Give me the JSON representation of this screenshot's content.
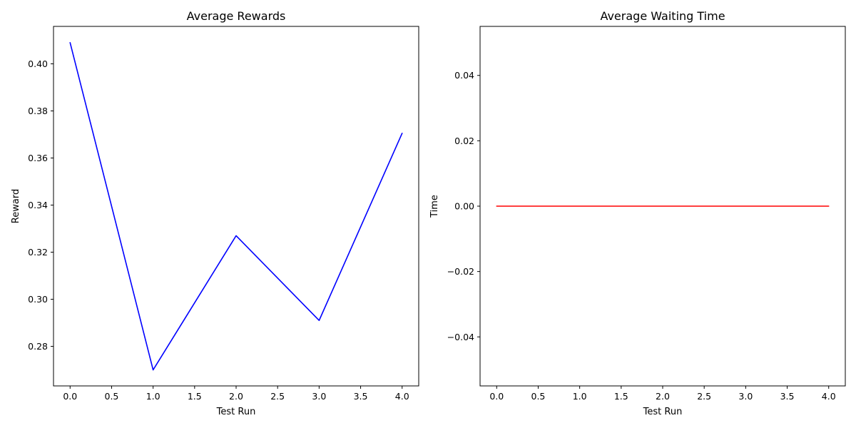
{
  "chart_data": [
    {
      "type": "line",
      "title": "Average Rewards",
      "xlabel": "Test Run",
      "ylabel": "Reward",
      "x": [
        0,
        1,
        2,
        3,
        4
      ],
      "series": [
        {
          "values": [
            0.409,
            0.27,
            0.327,
            0.291,
            0.3705
          ],
          "color": "#0000ff"
        }
      ],
      "xlim": [
        -0.2,
        4.2
      ],
      "ylim": [
        0.2632,
        0.4159
      ],
      "xticks": [
        0.0,
        0.5,
        1.0,
        1.5,
        2.0,
        2.5,
        3.0,
        3.5,
        4.0
      ],
      "xtick_labels": [
        "0.0",
        "0.5",
        "1.0",
        "1.5",
        "2.0",
        "2.5",
        "3.0",
        "3.5",
        "4.0"
      ],
      "yticks": [
        0.28,
        0.3,
        0.32,
        0.34,
        0.36,
        0.38,
        0.4
      ],
      "ytick_labels": [
        "0.28",
        "0.30",
        "0.32",
        "0.34",
        "0.36",
        "0.38",
        "0.40"
      ],
      "grid": false
    },
    {
      "type": "line",
      "title": "Average Waiting Time",
      "xlabel": "Test Run",
      "ylabel": "Time",
      "x": [
        0,
        1,
        2,
        3,
        4
      ],
      "series": [
        {
          "values": [
            0,
            0,
            0,
            0,
            0
          ],
          "color": "#ff0000"
        }
      ],
      "xlim": [
        -0.2,
        4.2
      ],
      "ylim": [
        -0.055,
        0.055
      ],
      "xticks": [
        0.0,
        0.5,
        1.0,
        1.5,
        2.0,
        2.5,
        3.0,
        3.5,
        4.0
      ],
      "xtick_labels": [
        "0.0",
        "0.5",
        "1.0",
        "1.5",
        "2.0",
        "2.5",
        "3.0",
        "3.5",
        "4.0"
      ],
      "yticks": [
        -0.04,
        -0.02,
        0.0,
        0.02,
        0.04
      ],
      "ytick_labels": [
        "−0.04",
        "−0.02",
        "0.00",
        "0.02",
        "0.04"
      ],
      "grid": false
    }
  ]
}
